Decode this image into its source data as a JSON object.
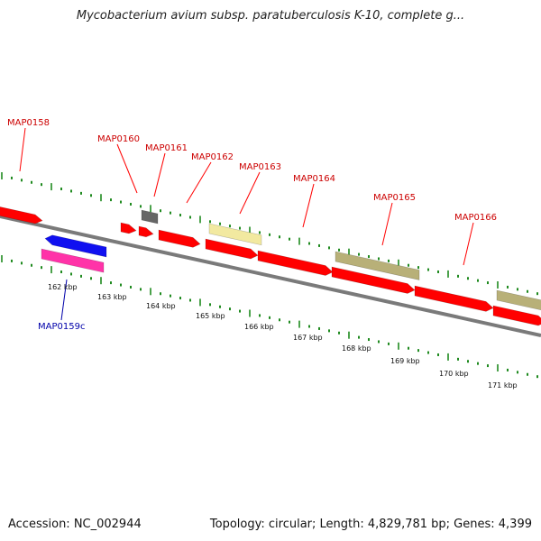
{
  "title": "Mycobacterium avium subsp. paratuberculosis K-10, complete g...",
  "footer": {
    "accession": "Accession: NC_002944",
    "topology": "Topology: circular; Length: 4,829,781 bp; Genes: 4,399"
  },
  "colors": {
    "backbone": "#8c8c8c",
    "tick": "#1f8a1f",
    "gene_red": "#ff0000",
    "gene_pale_yellow": "#f2e9a0",
    "gene_olive": "#b8b078",
    "gene_gray": "#666666",
    "gene_blue": "#1010f0",
    "gene_pink": "#ff33a8",
    "label_forward": "#cc0000",
    "label_reverse": "#0000aa"
  },
  "forward_labels": [
    "MAP0158",
    "MAP0160",
    "MAP0161",
    "MAP0162",
    "MAP0163",
    "MAP0164",
    "MAP0165",
    "MAP0166"
  ],
  "reverse_labels": [
    "MAP0159c"
  ],
  "kbp_labels": [
    "162 kbp",
    "163 kbp",
    "164 kbp",
    "165 kbp",
    "166 kbp",
    "167 kbp",
    "168 kbp",
    "169 kbp",
    "170 kbp",
    "171 kbp"
  ]
}
